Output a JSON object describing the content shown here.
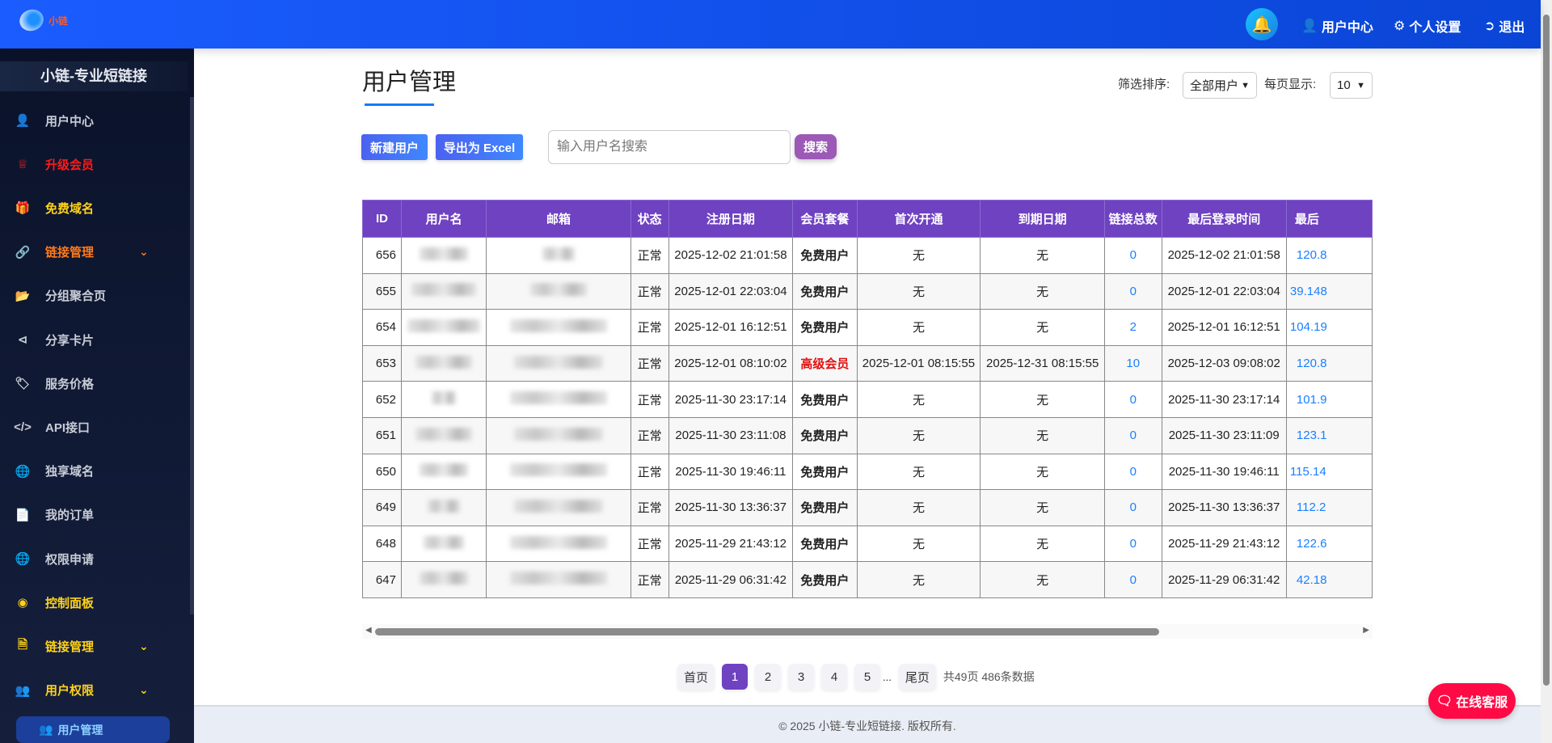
{
  "header": {
    "logo_text": "小链",
    "nav": [
      {
        "label": "用户中心",
        "icon": "user-icon"
      },
      {
        "label": "个人设置",
        "icon": "gear-icon"
      },
      {
        "label": "退出",
        "icon": "sign-out-icon"
      }
    ],
    "bell_icon": "bell-icon"
  },
  "sidebar": {
    "title": "小链-专业短链接",
    "items": [
      {
        "label": "用户中心",
        "icon": "user-icon",
        "color": "#c8ccd6"
      },
      {
        "label": "升级会员",
        "icon": "crown-icon",
        "color": "#ff1a1a"
      },
      {
        "label": "免费域名",
        "icon": "gift-icon",
        "color": "#ffd21a"
      },
      {
        "label": "链接管理",
        "icon": "link-icon",
        "color": "#ff7a1a",
        "chevron": true
      },
      {
        "label": "分组聚合页",
        "icon": "folder-open-icon",
        "color": "#c8ccd6"
      },
      {
        "label": "分享卡片",
        "icon": "share-icon",
        "color": "#c8ccd6"
      },
      {
        "label": "服务价格",
        "icon": "tag-icon",
        "color": "#c8ccd6"
      },
      {
        "label": "API接口",
        "icon": "code-icon",
        "color": "#c8ccd6"
      },
      {
        "label": "独享域名",
        "icon": "globe-icon",
        "color": "#c8ccd6"
      },
      {
        "label": "我的订单",
        "icon": "file-icon",
        "color": "#c8ccd6"
      },
      {
        "label": "权限申请",
        "icon": "globe-icon",
        "color": "#c8ccd6"
      },
      {
        "label": "控制面板",
        "icon": "dashboard-icon",
        "color": "#ffd21a"
      },
      {
        "label": "链接管理",
        "icon": "file-text-icon",
        "color": "#ffd21a",
        "chevron": true
      },
      {
        "label": "用户权限",
        "icon": "users-icon",
        "color": "#ffd21a",
        "chevron": true
      }
    ],
    "active_sub": "用户管理"
  },
  "page": {
    "title": "用户管理",
    "filter_label": "筛选排序:",
    "filter_value": "全部用户",
    "per_page_label": "每页显示:",
    "per_page_value": "10",
    "new_user": "新建用户",
    "export": "导出为 Excel",
    "search_placeholder": "输入用户名搜索",
    "search_button": "搜索"
  },
  "table": {
    "columns": [
      "ID",
      "用户名",
      "邮箱",
      "状态",
      "注册日期",
      "会员套餐",
      "首次开通",
      "到期日期",
      "链接总数",
      "最后登录时间",
      "最后"
    ],
    "rows": [
      {
        "id": "656",
        "status": "正常",
        "reg": "2025-12-02 21:01:58",
        "plan": "免费用户",
        "first": "无",
        "expire": "无",
        "links": "0",
        "last_login": "2025-12-02 21:01:58",
        "last_ip": "120.8"
      },
      {
        "id": "655",
        "status": "正常",
        "reg": "2025-12-01 22:03:04",
        "plan": "免费用户",
        "first": "无",
        "expire": "无",
        "links": "0",
        "last_login": "2025-12-01 22:03:04",
        "last_ip": "39.148"
      },
      {
        "id": "654",
        "status": "正常",
        "reg": "2025-12-01 16:12:51",
        "plan": "免费用户",
        "first": "无",
        "expire": "无",
        "links": "2",
        "last_login": "2025-12-01 16:12:51",
        "last_ip": "104.19"
      },
      {
        "id": "653",
        "status": "正常",
        "reg": "2025-12-01 08:10:02",
        "plan": "高级会员",
        "first": "2025-12-01 08:15:55",
        "expire": "2025-12-31 08:15:55",
        "links": "10",
        "last_login": "2025-12-03 09:08:02",
        "last_ip": "120.8"
      },
      {
        "id": "652",
        "status": "正常",
        "reg": "2025-11-30 23:17:14",
        "plan": "免费用户",
        "first": "无",
        "expire": "无",
        "links": "0",
        "last_login": "2025-11-30 23:17:14",
        "last_ip": "101.9"
      },
      {
        "id": "651",
        "status": "正常",
        "reg": "2025-11-30 23:11:08",
        "plan": "免费用户",
        "first": "无",
        "expire": "无",
        "links": "0",
        "last_login": "2025-11-30 23:11:09",
        "last_ip": "123.1"
      },
      {
        "id": "650",
        "status": "正常",
        "reg": "2025-11-30 19:46:11",
        "plan": "免费用户",
        "first": "无",
        "expire": "无",
        "links": "0",
        "last_login": "2025-11-30 19:46:11",
        "last_ip": "115.14"
      },
      {
        "id": "649",
        "status": "正常",
        "reg": "2025-11-30 13:36:37",
        "plan": "免费用户",
        "first": "无",
        "expire": "无",
        "links": "0",
        "last_login": "2025-11-30 13:36:37",
        "last_ip": "112.2"
      },
      {
        "id": "648",
        "status": "正常",
        "reg": "2025-11-29 21:43:12",
        "plan": "免费用户",
        "first": "无",
        "expire": "无",
        "links": "0",
        "last_login": "2025-11-29 21:43:12",
        "last_ip": "122.6"
      },
      {
        "id": "647",
        "status": "正常",
        "reg": "2025-11-29 06:31:42",
        "plan": "免费用户",
        "first": "无",
        "expire": "无",
        "links": "0",
        "last_login": "2025-11-29 06:31:42",
        "last_ip": "42.18"
      }
    ]
  },
  "pagination": {
    "first": "首页",
    "pages": [
      "1",
      "2",
      "3",
      "4",
      "5"
    ],
    "current": "1",
    "ellipsis": "...",
    "last": "尾页",
    "info": "共49页 486条数据"
  },
  "footer": {
    "text": "© 2025 小链-专业短链接. 版权所有."
  },
  "support": {
    "label": "在线客服"
  },
  "colors": {
    "header": "#0a45d6",
    "table_header": "#6f42c1",
    "premium": "#e01010",
    "link": "#1a7fff",
    "support": "#ff0a45"
  }
}
